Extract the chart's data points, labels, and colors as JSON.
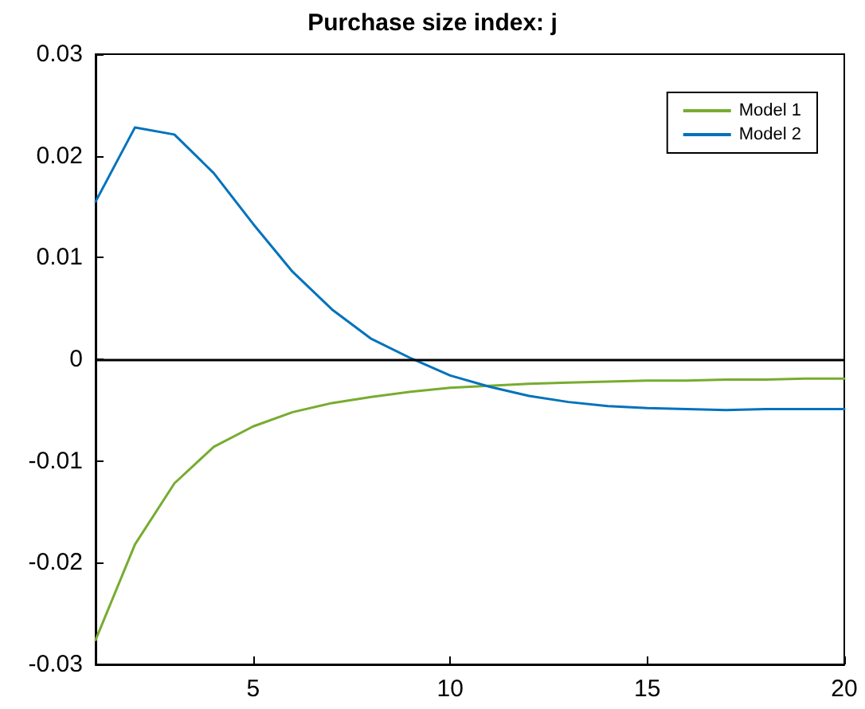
{
  "chart_data": {
    "type": "line",
    "title": "Purchase size index: j",
    "x": [
      1,
      2,
      3,
      4,
      5,
      6,
      7,
      8,
      9,
      10,
      11,
      12,
      13,
      14,
      15,
      16,
      17,
      18,
      19,
      20
    ],
    "series": [
      {
        "name": "Model 1",
        "color": "#77ac30",
        "values": [
          -0.0276,
          -0.0182,
          -0.0122,
          -0.0086,
          -0.0066,
          -0.0052,
          -0.0043,
          -0.0037,
          -0.0032,
          -0.0028,
          -0.0026,
          -0.0024,
          -0.0023,
          -0.0022,
          -0.0021,
          -0.0021,
          -0.002,
          -0.002,
          -0.0019,
          -0.0019
        ]
      },
      {
        "name": "Model 2",
        "color": "#0072bd",
        "values": [
          0.0155,
          0.0228,
          0.0221,
          0.0183,
          0.0133,
          0.0086,
          0.0049,
          0.002,
          0.0001,
          -0.0016,
          -0.0027,
          -0.0036,
          -0.0042,
          -0.0046,
          -0.0048,
          -0.0049,
          -0.005,
          -0.0049,
          -0.0049,
          -0.0049
        ]
      }
    ],
    "xlim": [
      1,
      20
    ],
    "xticks": [
      5,
      10,
      15,
      20
    ],
    "ylim": [
      -0.03,
      0.03
    ],
    "yticks": [
      -0.03,
      -0.02,
      -0.01,
      0,
      0.01,
      0.02,
      0.03
    ],
    "ref_lines": [
      {
        "axis": "y",
        "value": 0,
        "color": "#000000"
      }
    ],
    "legend": "top right",
    "grid": false,
    "marker": "none",
    "line_style": "solid"
  }
}
